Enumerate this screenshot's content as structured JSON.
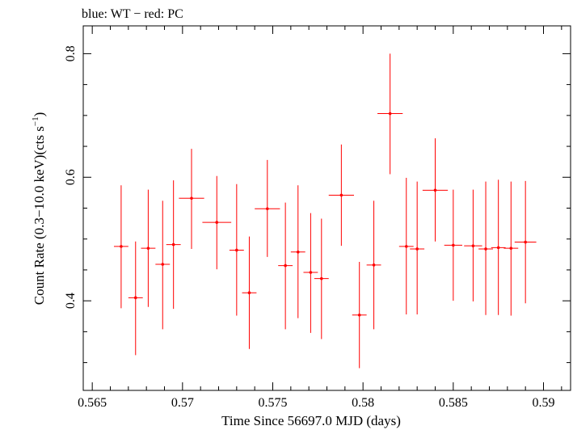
{
  "chart_data": {
    "type": "scatter",
    "title": "blue: WT − red: PC",
    "xlabel": "Time Since 56697.0 MJD (days)",
    "ylabel_main": "Count Rate (0.3−10.0 keV)(cts s",
    "ylabel_sup": "−1",
    "ylabel_close": ")",
    "xlim": [
      0.5645,
      0.5915
    ],
    "ylim": [
      0.255,
      0.845
    ],
    "x_ticks": [
      0.565,
      0.57,
      0.575,
      0.58,
      0.585,
      0.59
    ],
    "x_tick_labels": [
      "0.565",
      "0.57",
      "0.575",
      "0.58",
      "0.585",
      "0.59"
    ],
    "y_ticks": [
      0.4,
      0.6,
      0.8
    ],
    "y_tick_labels": [
      "0.4",
      "0.6",
      "0.8"
    ],
    "grid": false,
    "series": [
      {
        "color": "#ff0000",
        "points": [
          {
            "x": 0.5666,
            "xerr": 0.0004,
            "y": 0.488,
            "ylo": 0.388,
            "yhi": 0.587
          },
          {
            "x": 0.5674,
            "xerr": 0.0004,
            "y": 0.405,
            "ylo": 0.312,
            "yhi": 0.496
          },
          {
            "x": 0.5681,
            "xerr": 0.0004,
            "y": 0.485,
            "ylo": 0.39,
            "yhi": 0.58
          },
          {
            "x": 0.5689,
            "xerr": 0.0004,
            "y": 0.459,
            "ylo": 0.354,
            "yhi": 0.562
          },
          {
            "x": 0.5695,
            "xerr": 0.0004,
            "y": 0.491,
            "ylo": 0.387,
            "yhi": 0.595
          },
          {
            "x": 0.5705,
            "xerr": 0.0007,
            "y": 0.566,
            "ylo": 0.484,
            "yhi": 0.646
          },
          {
            "x": 0.5719,
            "xerr": 0.0008,
            "y": 0.527,
            "ylo": 0.451,
            "yhi": 0.602
          },
          {
            "x": 0.573,
            "xerr": 0.0004,
            "y": 0.482,
            "ylo": 0.376,
            "yhi": 0.589
          },
          {
            "x": 0.5737,
            "xerr": 0.0004,
            "y": 0.413,
            "ylo": 0.322,
            "yhi": 0.504
          },
          {
            "x": 0.5747,
            "xerr": 0.0007,
            "y": 0.549,
            "ylo": 0.471,
            "yhi": 0.628
          },
          {
            "x": 0.5757,
            "xerr": 0.0004,
            "y": 0.457,
            "ylo": 0.354,
            "yhi": 0.559
          },
          {
            "x": 0.5764,
            "xerr": 0.0004,
            "y": 0.479,
            "ylo": 0.372,
            "yhi": 0.587
          },
          {
            "x": 0.5771,
            "xerr": 0.0004,
            "y": 0.446,
            "ylo": 0.348,
            "yhi": 0.542
          },
          {
            "x": 0.5777,
            "xerr": 0.0004,
            "y": 0.436,
            "ylo": 0.338,
            "yhi": 0.533
          },
          {
            "x": 0.5788,
            "xerr": 0.0007,
            "y": 0.571,
            "ylo": 0.489,
            "yhi": 0.653
          },
          {
            "x": 0.5798,
            "xerr": 0.0004,
            "y": 0.377,
            "ylo": 0.291,
            "yhi": 0.463
          },
          {
            "x": 0.5806,
            "xerr": 0.0004,
            "y": 0.458,
            "ylo": 0.354,
            "yhi": 0.562
          },
          {
            "x": 0.5815,
            "xerr": 0.0007,
            "y": 0.703,
            "ylo": 0.605,
            "yhi": 0.8
          },
          {
            "x": 0.5824,
            "xerr": 0.0004,
            "y": 0.488,
            "ylo": 0.378,
            "yhi": 0.599
          },
          {
            "x": 0.583,
            "xerr": 0.0004,
            "y": 0.484,
            "ylo": 0.378,
            "yhi": 0.593
          },
          {
            "x": 0.584,
            "xerr": 0.0007,
            "y": 0.579,
            "ylo": 0.496,
            "yhi": 0.663
          },
          {
            "x": 0.585,
            "xerr": 0.0005,
            "y": 0.49,
            "ylo": 0.4,
            "yhi": 0.58
          },
          {
            "x": 0.5861,
            "xerr": 0.0005,
            "y": 0.489,
            "ylo": 0.399,
            "yhi": 0.58
          },
          {
            "x": 0.5868,
            "xerr": 0.0004,
            "y": 0.484,
            "ylo": 0.377,
            "yhi": 0.593
          },
          {
            "x": 0.5875,
            "xerr": 0.0004,
            "y": 0.486,
            "ylo": 0.377,
            "yhi": 0.596
          },
          {
            "x": 0.5882,
            "xerr": 0.0004,
            "y": 0.485,
            "ylo": 0.376,
            "yhi": 0.593
          },
          {
            "x": 0.589,
            "xerr": 0.0006,
            "y": 0.495,
            "ylo": 0.396,
            "yhi": 0.594
          }
        ]
      }
    ]
  }
}
